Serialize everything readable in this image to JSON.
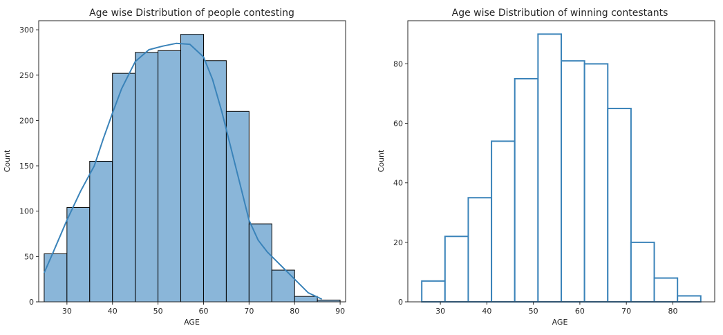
{
  "chart_data": [
    {
      "type": "bar",
      "title": "Age wise Distribution of people contesting",
      "xlabel": "AGE",
      "ylabel": "Count",
      "bin_edges": [
        25,
        30,
        35,
        40,
        45,
        50,
        55,
        60,
        65,
        70,
        75,
        80,
        85,
        90
      ],
      "values": [
        53,
        104,
        155,
        252,
        275,
        277,
        295,
        266,
        210,
        86,
        35,
        6,
        2
      ],
      "xlim": [
        23.8,
        91.2
      ],
      "ylim": [
        0,
        310
      ],
      "xticks": [
        30,
        40,
        50,
        60,
        70,
        80,
        90
      ],
      "yticks": [
        0,
        50,
        100,
        150,
        200,
        250,
        300
      ],
      "style": "filled",
      "bar_fill": "#8ab6d9",
      "bar_edge": "#000000",
      "kde": {
        "color": "#3a83b9",
        "x": [
          25,
          27,
          30,
          33,
          36,
          38,
          40,
          42,
          45,
          48,
          51,
          54,
          57,
          60,
          62,
          64,
          66,
          68,
          70,
          72,
          74,
          77,
          80,
          83,
          86
        ],
        "y": [
          32,
          55,
          90,
          122,
          150,
          180,
          208,
          235,
          265,
          278,
          282,
          285,
          284,
          270,
          245,
          210,
          170,
          130,
          90,
          68,
          55,
          40,
          25,
          10,
          3
        ]
      },
      "grid": false
    },
    {
      "type": "bar",
      "title": "Age wise Distribution of winning contestants",
      "xlabel": "AGE",
      "ylabel": "Count",
      "bin_edges": [
        26,
        31,
        36,
        41,
        46,
        51,
        56,
        61,
        66,
        71,
        76,
        81,
        86
      ],
      "values": [
        7,
        22,
        35,
        54,
        75,
        90,
        81,
        80,
        65,
        20,
        8,
        2
      ],
      "xlim": [
        23,
        89
      ],
      "ylim": [
        0,
        94.5
      ],
      "xticks": [
        30,
        40,
        50,
        60,
        70,
        80
      ],
      "yticks": [
        0,
        20,
        40,
        60,
        80
      ],
      "style": "step",
      "bar_fill": "#ffffff",
      "bar_edge": "#3a83b9",
      "grid": false
    }
  ]
}
